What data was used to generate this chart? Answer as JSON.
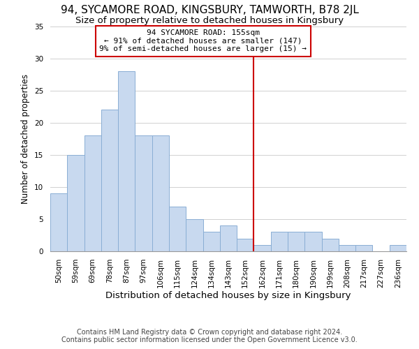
{
  "title": "94, SYCAMORE ROAD, KINGSBURY, TAMWORTH, B78 2JL",
  "subtitle": "Size of property relative to detached houses in Kingsbury",
  "xlabel": "Distribution of detached houses by size in Kingsbury",
  "ylabel": "Number of detached properties",
  "bar_labels": [
    "50sqm",
    "59sqm",
    "69sqm",
    "78sqm",
    "87sqm",
    "97sqm",
    "106sqm",
    "115sqm",
    "124sqm",
    "134sqm",
    "143sqm",
    "152sqm",
    "162sqm",
    "171sqm",
    "180sqm",
    "190sqm",
    "199sqm",
    "208sqm",
    "217sqm",
    "227sqm",
    "236sqm"
  ],
  "bar_heights": [
    9,
    15,
    18,
    22,
    28,
    18,
    18,
    7,
    5,
    3,
    4,
    2,
    1,
    3,
    3,
    3,
    2,
    1,
    1,
    0,
    1
  ],
  "bar_color": "#c8d9ef",
  "bar_edge_color": "#8aaed4",
  "grid_color": "#d0d0d0",
  "vline_x": 11.5,
  "vline_color": "#cc0000",
  "annotation_title": "94 SYCAMORE ROAD: 155sqm",
  "annotation_line1": "← 91% of detached houses are smaller (147)",
  "annotation_line2": "9% of semi-detached houses are larger (15) →",
  "annotation_box_color": "#ffffff",
  "annotation_box_edge": "#cc0000",
  "footer1": "Contains HM Land Registry data © Crown copyright and database right 2024.",
  "footer2": "Contains public sector information licensed under the Open Government Licence v3.0.",
  "ylim": [
    0,
    35
  ],
  "title_fontsize": 11,
  "subtitle_fontsize": 9.5,
  "xlabel_fontsize": 9.5,
  "ylabel_fontsize": 8.5,
  "tick_fontsize": 7.5,
  "annotation_fontsize": 8,
  "footer_fontsize": 7
}
